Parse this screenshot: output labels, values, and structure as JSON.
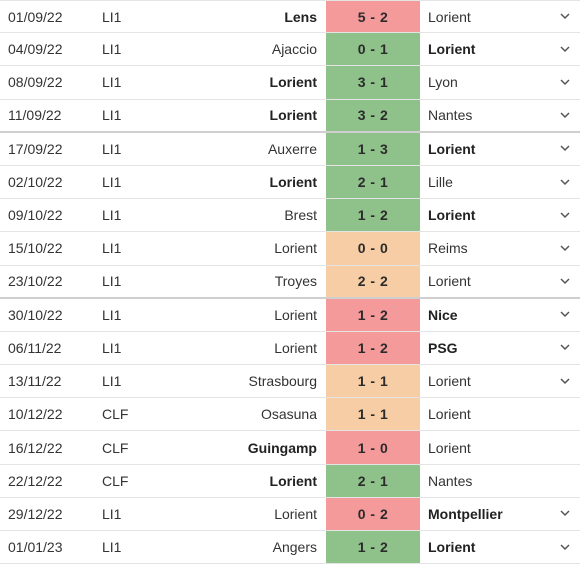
{
  "colors": {
    "win": "#8fc18a",
    "draw": "#f6cda4",
    "loss": "#f49a9a",
    "border": "#e4e4e4",
    "text": "#333333"
  },
  "matches": [
    {
      "date": "01/09/22",
      "comp": "LI1",
      "home": "Lens",
      "score": "5 - 2",
      "away": "Lorient",
      "result": "loss",
      "bold": "home",
      "expand": true
    },
    {
      "date": "04/09/22",
      "comp": "LI1",
      "home": "Ajaccio",
      "score": "0 - 1",
      "away": "Lorient",
      "result": "win",
      "bold": "away",
      "expand": true
    },
    {
      "date": "08/09/22",
      "comp": "LI1",
      "home": "Lorient",
      "score": "3 - 1",
      "away": "Lyon",
      "result": "win",
      "bold": "home",
      "expand": true
    },
    {
      "date": "11/09/22",
      "comp": "LI1",
      "home": "Lorient",
      "score": "3 - 2",
      "away": "Nantes",
      "result": "win",
      "bold": "home",
      "expand": true
    },
    {
      "date": "17/09/22",
      "comp": "LI1",
      "home": "Auxerre",
      "score": "1 - 3",
      "away": "Lorient",
      "result": "win",
      "bold": "away",
      "expand": true
    },
    {
      "date": "02/10/22",
      "comp": "LI1",
      "home": "Lorient",
      "score": "2 - 1",
      "away": "Lille",
      "result": "win",
      "bold": "home",
      "expand": true
    },
    {
      "date": "09/10/22",
      "comp": "LI1",
      "home": "Brest",
      "score": "1 - 2",
      "away": "Lorient",
      "result": "win",
      "bold": "away",
      "expand": true
    },
    {
      "date": "15/10/22",
      "comp": "LI1",
      "home": "Lorient",
      "score": "0 - 0",
      "away": "Reims",
      "result": "draw",
      "bold": "none",
      "expand": true
    },
    {
      "date": "23/10/22",
      "comp": "LI1",
      "home": "Troyes",
      "score": "2 - 2",
      "away": "Lorient",
      "result": "draw",
      "bold": "none",
      "expand": true
    },
    {
      "date": "30/10/22",
      "comp": "LI1",
      "home": "Lorient",
      "score": "1 - 2",
      "away": "Nice",
      "result": "loss",
      "bold": "away",
      "expand": true
    },
    {
      "date": "06/11/22",
      "comp": "LI1",
      "home": "Lorient",
      "score": "1 - 2",
      "away": "PSG",
      "result": "loss",
      "bold": "away",
      "expand": true
    },
    {
      "date": "13/11/22",
      "comp": "LI1",
      "home": "Strasbourg",
      "score": "1 - 1",
      "away": "Lorient",
      "result": "draw",
      "bold": "none",
      "expand": true
    },
    {
      "date": "10/12/22",
      "comp": "CLF",
      "home": "Osasuna",
      "score": "1 - 1",
      "away": "Lorient",
      "result": "draw",
      "bold": "none",
      "expand": false
    },
    {
      "date": "16/12/22",
      "comp": "CLF",
      "home": "Guingamp",
      "score": "1 - 0",
      "away": "Lorient",
      "result": "loss",
      "bold": "home",
      "expand": false
    },
    {
      "date": "22/12/22",
      "comp": "CLF",
      "home": "Lorient",
      "score": "2 - 1",
      "away": "Nantes",
      "result": "win",
      "bold": "home",
      "expand": false
    },
    {
      "date": "29/12/22",
      "comp": "LI1",
      "home": "Lorient",
      "score": "0 - 2",
      "away": "Montpellier",
      "result": "loss",
      "bold": "away",
      "expand": true
    },
    {
      "date": "01/01/23",
      "comp": "LI1",
      "home": "Angers",
      "score": "1 - 2",
      "away": "Lorient",
      "result": "win",
      "bold": "away",
      "expand": true
    }
  ]
}
